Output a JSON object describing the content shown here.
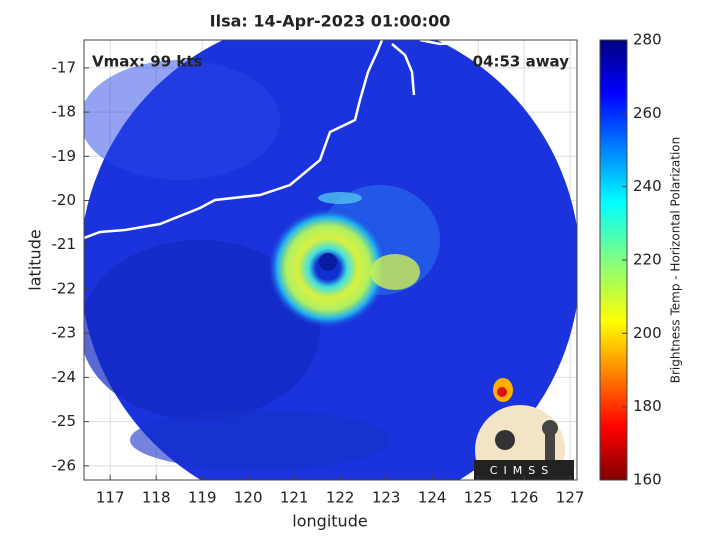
{
  "chart_data": {
    "type": "image-map",
    "title": "Ilsa: 14-Apr-2023 01:00:00",
    "annotations": [
      "Vmax: 99 kts",
      "04:53 away"
    ],
    "xlabel": "longitude",
    "ylabel": "latitude",
    "xlim": [
      116.43,
      127.15
    ],
    "xticks": [
      117,
      118,
      119,
      120,
      121,
      122,
      123,
      124,
      125,
      126,
      127
    ],
    "ylim": [
      -26.32,
      -16.37
    ],
    "yticks": [
      -17,
      -18,
      -19,
      -20,
      -21,
      -22,
      -23,
      -24,
      -25,
      -26
    ],
    "grid": true,
    "colorbar": {
      "label": "Brightness Temp - Horizontal Polarization",
      "lim": [
        160,
        280
      ],
      "ticks": [
        160,
        180,
        200,
        220,
        240,
        260,
        280
      ]
    },
    "logo": "CIMSS"
  }
}
